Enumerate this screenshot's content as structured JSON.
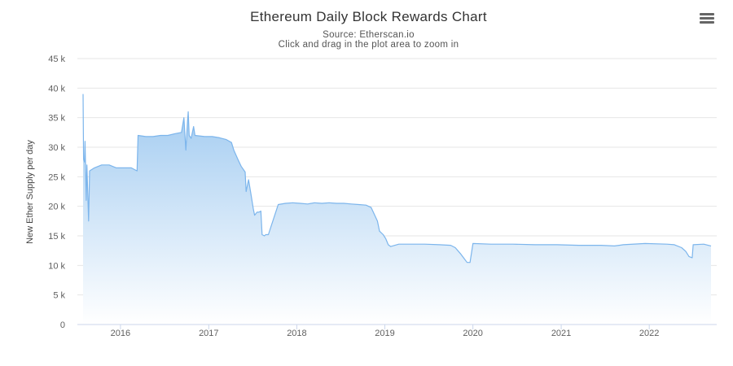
{
  "header": {
    "title": "Ethereum Daily Block Rewards Chart",
    "subtitle_source": "Source: Etherscan.io",
    "subtitle_hint": "Click and drag in the plot area to zoom in",
    "menu_icon": "hamburger-menu-icon"
  },
  "colors": {
    "line": "#7cb5ec",
    "fill_top": "#9ec9f0",
    "fill_bottom": "#ffffff",
    "grid": "#e6e6e6",
    "axis": "#ccd6eb"
  },
  "chart_data": {
    "type": "area",
    "title": "Ethereum Daily Block Rewards Chart",
    "subtitle": "Source: Etherscan.io",
    "xlabel": "",
    "ylabel": "New Ether Supply per day",
    "x_range": [
      "2015-07-30",
      "2022-09-14"
    ],
    "ylim": [
      0,
      45000
    ],
    "y_ticks": [
      {
        "value": 0,
        "label": "0"
      },
      {
        "value": 5000,
        "label": "5 k"
      },
      {
        "value": 10000,
        "label": "10 k"
      },
      {
        "value": 15000,
        "label": "15 k"
      },
      {
        "value": 20000,
        "label": "20 k"
      },
      {
        "value": 25000,
        "label": "25 k"
      },
      {
        "value": 30000,
        "label": "30 k"
      },
      {
        "value": 35000,
        "label": "35 k"
      },
      {
        "value": 40000,
        "label": "40 k"
      },
      {
        "value": 45000,
        "label": "45 k"
      }
    ],
    "x_ticks": [
      {
        "value": "2016-01-01",
        "label": "2016"
      },
      {
        "value": "2017-01-01",
        "label": "2017"
      },
      {
        "value": "2018-01-01",
        "label": "2018"
      },
      {
        "value": "2019-01-01",
        "label": "2019"
      },
      {
        "value": "2020-01-01",
        "label": "2020"
      },
      {
        "value": "2021-01-01",
        "label": "2021"
      },
      {
        "value": "2022-01-01",
        "label": "2022"
      }
    ],
    "grid": true,
    "legend": "none",
    "series": [
      {
        "points": [
          [
            "2015-07-30",
            39000
          ],
          [
            "2015-08-01",
            28000
          ],
          [
            "2015-08-05",
            27500
          ],
          [
            "2015-08-07",
            31000
          ],
          [
            "2015-08-09",
            27000
          ],
          [
            "2015-08-12",
            21000
          ],
          [
            "2015-08-15",
            27000
          ],
          [
            "2015-08-22",
            17500
          ],
          [
            "2015-08-26",
            26000
          ],
          [
            "2015-09-15",
            26500
          ],
          [
            "2015-10-15",
            27000
          ],
          [
            "2015-11-15",
            27000
          ],
          [
            "2015-12-15",
            26500
          ],
          [
            "2016-01-15",
            26500
          ],
          [
            "2016-02-15",
            26500
          ],
          [
            "2016-03-10",
            26000
          ],
          [
            "2016-03-14",
            32000
          ],
          [
            "2016-04-15",
            31800
          ],
          [
            "2016-05-15",
            31800
          ],
          [
            "2016-06-15",
            32000
          ],
          [
            "2016-07-15",
            32000
          ],
          [
            "2016-08-15",
            32300
          ],
          [
            "2016-09-10",
            32500
          ],
          [
            "2016-09-20",
            35000
          ],
          [
            "2016-09-28",
            29500
          ],
          [
            "2016-10-05",
            34500
          ],
          [
            "2016-10-08",
            36000
          ],
          [
            "2016-10-12",
            32000
          ],
          [
            "2016-10-20",
            31500
          ],
          [
            "2016-10-30",
            33500
          ],
          [
            "2016-11-05",
            32000
          ],
          [
            "2016-12-15",
            31800
          ],
          [
            "2017-01-15",
            31800
          ],
          [
            "2017-02-15",
            31600
          ],
          [
            "2017-03-15",
            31300
          ],
          [
            "2017-04-05",
            30800
          ],
          [
            "2017-04-15",
            29500
          ],
          [
            "2017-05-01",
            28000
          ],
          [
            "2017-05-15",
            26800
          ],
          [
            "2017-06-01",
            25800
          ],
          [
            "2017-06-05",
            22500
          ],
          [
            "2017-06-15",
            24500
          ],
          [
            "2017-06-25",
            22000
          ],
          [
            "2017-07-05",
            19500
          ],
          [
            "2017-07-10",
            18500
          ],
          [
            "2017-07-20",
            19000
          ],
          [
            "2017-07-28",
            19000
          ],
          [
            "2017-08-05",
            19200
          ],
          [
            "2017-08-10",
            15200
          ],
          [
            "2017-08-20",
            15000
          ],
          [
            "2017-08-25",
            15200
          ],
          [
            "2017-09-05",
            15200
          ],
          [
            "2017-10-16",
            20300
          ],
          [
            "2017-11-15",
            20500
          ],
          [
            "2017-12-15",
            20600
          ],
          [
            "2018-01-15",
            20500
          ],
          [
            "2018-02-15",
            20400
          ],
          [
            "2018-03-15",
            20600
          ],
          [
            "2018-04-15",
            20500
          ],
          [
            "2018-05-15",
            20600
          ],
          [
            "2018-06-15",
            20500
          ],
          [
            "2018-07-15",
            20500
          ],
          [
            "2018-08-15",
            20400
          ],
          [
            "2018-09-15",
            20300
          ],
          [
            "2018-10-15",
            20200
          ],
          [
            "2018-11-05",
            19800
          ],
          [
            "2018-11-20",
            18500
          ],
          [
            "2018-12-01",
            17500
          ],
          [
            "2018-12-10",
            15800
          ],
          [
            "2018-12-25",
            15200
          ],
          [
            "2019-01-05",
            14500
          ],
          [
            "2019-01-15",
            13500
          ],
          [
            "2019-01-25",
            13200
          ],
          [
            "2019-02-28",
            13600
          ],
          [
            "2019-04-15",
            13600
          ],
          [
            "2019-06-15",
            13600
          ],
          [
            "2019-08-15",
            13500
          ],
          [
            "2019-10-01",
            13400
          ],
          [
            "2019-10-20",
            13000
          ],
          [
            "2019-11-10",
            12000
          ],
          [
            "2019-11-25",
            11200
          ],
          [
            "2019-12-08",
            10500
          ],
          [
            "2019-12-20",
            10500
          ],
          [
            "2020-01-01",
            13700
          ],
          [
            "2020-03-15",
            13600
          ],
          [
            "2020-06-15",
            13600
          ],
          [
            "2020-09-15",
            13500
          ],
          [
            "2020-12-15",
            13500
          ],
          [
            "2021-03-15",
            13400
          ],
          [
            "2021-06-15",
            13400
          ],
          [
            "2021-08-10",
            13300
          ],
          [
            "2021-09-15",
            13500
          ],
          [
            "2021-12-15",
            13700
          ],
          [
            "2022-03-15",
            13600
          ],
          [
            "2022-04-15",
            13500
          ],
          [
            "2022-05-15",
            13000
          ],
          [
            "2022-06-01",
            12400
          ],
          [
            "2022-06-15",
            11500
          ],
          [
            "2022-06-28",
            11300
          ],
          [
            "2022-07-02",
            13500
          ],
          [
            "2022-08-15",
            13600
          ],
          [
            "2022-09-14",
            13300
          ]
        ]
      }
    ]
  }
}
